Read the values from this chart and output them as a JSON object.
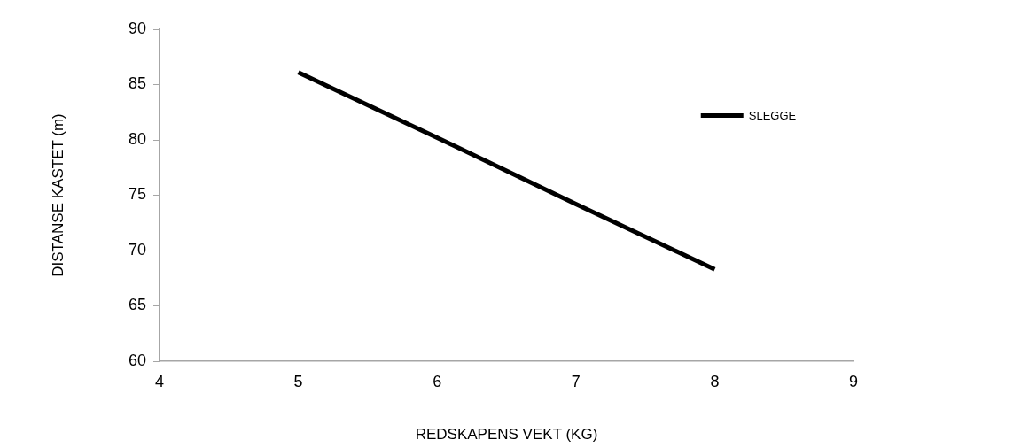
{
  "chart_data": {
    "type": "line",
    "xlabel": "REDSKAPENS VEKT (KG)",
    "ylabel": "DISTANSE KASTET (m)",
    "x": [
      5,
      6,
      7,
      8
    ],
    "series": [
      {
        "name": "SLEGGE",
        "color": "#000000",
        "values": [
          86.1,
          80.2,
          74.2,
          68.3
        ]
      }
    ],
    "xlim": [
      4,
      9
    ],
    "xticks": [
      4,
      5,
      6,
      7,
      8,
      9
    ],
    "ylim": [
      60,
      90
    ],
    "yticks": [
      60,
      65,
      70,
      75,
      80,
      85,
      90
    ],
    "grid": false,
    "legend": "right",
    "marker": "none",
    "line_style": "solid"
  }
}
